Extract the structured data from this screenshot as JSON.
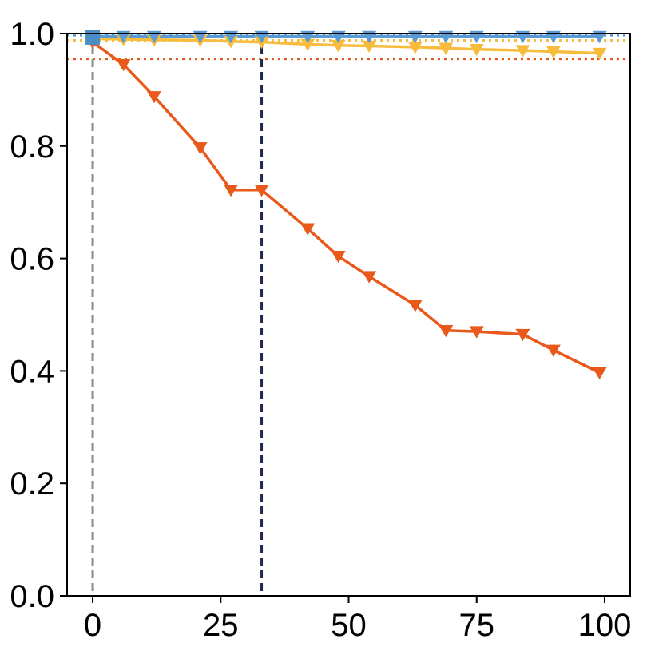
{
  "chart_data": {
    "type": "line",
    "xlim": [
      -5,
      105
    ],
    "ylim": [
      0.0,
      1.0
    ],
    "x_ticks": [
      0,
      25,
      50,
      75,
      100
    ],
    "y_ticks": [
      0.0,
      0.2,
      0.4,
      0.6,
      0.8,
      1.0
    ],
    "x_tick_labels": [
      "0",
      "25",
      "50",
      "75",
      "100"
    ],
    "y_tick_labels": [
      "0.0",
      "0.2",
      "0.4",
      "0.6",
      "0.8",
      "1.0"
    ],
    "grid": false,
    "legend": "none",
    "series": [
      {
        "color": "#e8591a",
        "marker": "triangle-down",
        "x": [
          0,
          6,
          12,
          21,
          27,
          33,
          42,
          48,
          54,
          63,
          69,
          75,
          84,
          90,
          99
        ],
        "values": [
          0.985,
          0.945,
          0.888,
          0.797,
          0.722,
          0.722,
          0.653,
          0.604,
          0.568,
          0.517,
          0.472,
          0.47,
          0.465,
          0.437,
          0.397
        ]
      },
      {
        "color": "#f8bc3c",
        "marker": "triangle-down",
        "x": [
          0,
          6,
          12,
          21,
          27,
          33,
          42,
          48,
          54,
          63,
          69,
          75,
          84,
          90,
          99
        ],
        "values": [
          0.991,
          0.99,
          0.989,
          0.988,
          0.986,
          0.985,
          0.981,
          0.979,
          0.978,
          0.976,
          0.974,
          0.972,
          0.97,
          0.968,
          0.965
        ]
      },
      {
        "color": "#5b9bd5",
        "marker": "triangle-down",
        "x": [
          0,
          6,
          12,
          21,
          27,
          33,
          42,
          48,
          54,
          63,
          69,
          75,
          84,
          90,
          99
        ],
        "values": [
          0.995,
          0.995,
          0.995,
          0.995,
          0.995,
          0.995,
          0.995,
          0.995,
          0.995,
          0.995,
          0.995,
          0.995,
          0.995,
          0.995,
          0.995
        ]
      }
    ],
    "start_marker": {
      "x": 0,
      "y": 0.993,
      "color": "#4a8fc4",
      "marker": "square"
    },
    "reference_lines": [
      {
        "orientation": "horizontal",
        "value": 0.955,
        "color": "#e8591a",
        "style": "dotted"
      },
      {
        "orientation": "horizontal",
        "value": 0.988,
        "color": "#f8bc3c",
        "style": "dotted"
      },
      {
        "orientation": "horizontal",
        "value": 0.997,
        "color": "#5b9bd5",
        "style": "dotted"
      },
      {
        "orientation": "vertical",
        "value": 0,
        "color": "#8c8c8c",
        "style": "dashed"
      },
      {
        "orientation": "vertical",
        "value": 33,
        "color": "#1b2a4e",
        "style": "dashed"
      }
    ]
  }
}
